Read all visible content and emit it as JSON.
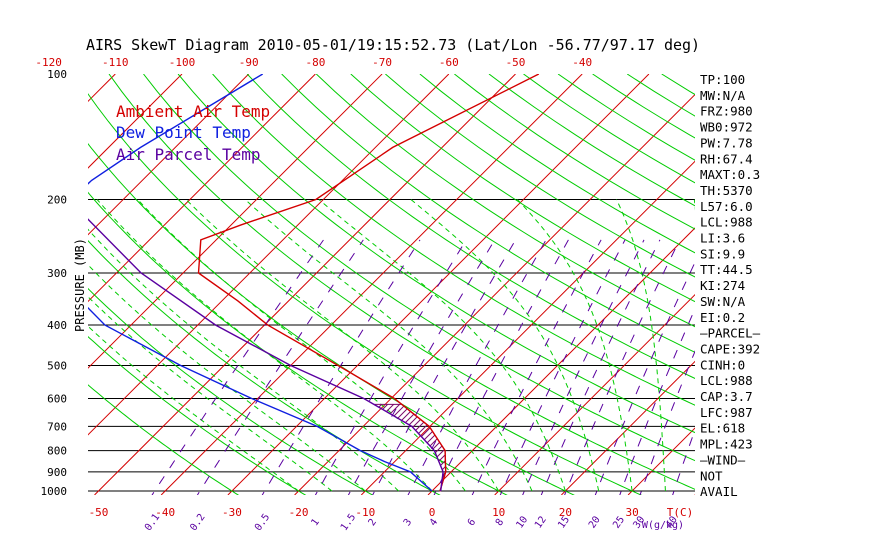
{
  "title": "AIRS SkewT Diagram 2010-05-01/19:15:52.73 (Lat/Lon -56.77/97.17 deg)",
  "ylabel": "PRESSURE (MB)",
  "xlabel": "T(C)",
  "mixing_label": "W(g/kg)",
  "top_ticks": [
    "-120",
    "-110",
    "-100",
    "-90",
    "-80",
    "-70",
    "-60",
    "-50",
    "-40"
  ],
  "bottom_ticks": [
    "-50",
    "-40",
    "-30",
    "-20",
    "-10",
    "0",
    "10",
    "20",
    "30"
  ],
  "pressure_ticks": [
    "100",
    "200",
    "300",
    "400",
    "500",
    "600",
    "700",
    "800",
    "900",
    "1000"
  ],
  "mixing_ratio_labels": [
    "0.1",
    "0.2",
    "0.5",
    "1",
    "1.5",
    "2",
    "3",
    "4",
    "6",
    "8",
    "10",
    "12",
    "15",
    "20",
    "25",
    "30",
    "40"
  ],
  "legend": [
    {
      "label": "Ambient Air Temp",
      "color": "#d40000"
    },
    {
      "label": "Dew Point Temp",
      "color": "#1020e0"
    },
    {
      "label": "Air Parcel Temp",
      "color": "#5a00a0"
    }
  ],
  "stats": [
    "TP:100",
    "MW:N/A",
    "FRZ:980",
    "WB0:972",
    "PW:7.78",
    "RH:67.4",
    "MAXT:0.3",
    "TH:5370",
    "L57:6.0",
    "LCL:988",
    "LI:3.6",
    "SI:9.9",
    "TT:44.5",
    "KI:274",
    "SW:N/A",
    "EI:0.2",
    "—PARCEL—",
    "CAPE:392",
    "CINH:0",
    "LCL:988",
    "CAP:3.7",
    "LFC:987",
    "EL:618",
    "MPL:423",
    "—WIND—",
    "NOT",
    "AVAIL"
  ],
  "colors": {
    "temperature": "#d40000",
    "dewpoint": "#1020e0",
    "parcel": "#5a00a0",
    "dry_adiabat": "#00cc00",
    "isotherm": "#d40000",
    "mixing_ratio": "#5a00a0",
    "background": "#ffffff"
  },
  "chart_data": {
    "type": "line",
    "title": "AIRS SkewT Diagram 2010-05-01/19:15:52.73 (Lat/Lon -56.77/97.17 deg)",
    "ylabel": "PRESSURE (MB)",
    "xlabel": "T(C)",
    "y_scale": "log",
    "ylim": [
      1050,
      100
    ],
    "xlim_bottom": [
      -52,
      38
    ],
    "series": [
      {
        "name": "Ambient Air Temp",
        "color": "#d40000",
        "points": [
          [
            100,
            -46.5
          ],
          [
            150,
            -57.4
          ],
          [
            200,
            -61.1
          ],
          [
            230,
            -68.5
          ],
          [
            250,
            -72.3
          ],
          [
            300,
            -67.7
          ],
          [
            350,
            -57.6
          ],
          [
            400,
            -49.5
          ],
          [
            500,
            -32.9
          ],
          [
            600,
            -19.5
          ],
          [
            700,
            -10.1
          ],
          [
            800,
            -4.1
          ],
          [
            900,
            -0.8
          ],
          [
            1000,
            1.2
          ]
        ]
      },
      {
        "name": "Dew Point Temp",
        "color": "#1020e0",
        "points": [
          [
            100,
            -87.9
          ],
          [
            150,
            -95.2
          ],
          [
            180,
            -97.6
          ],
          [
            200,
            -97.8
          ],
          [
            250,
            -96.5
          ],
          [
            300,
            -89.4
          ],
          [
            400,
            -73.9
          ],
          [
            500,
            -56.5
          ],
          [
            600,
            -40.9
          ],
          [
            700,
            -26.9
          ],
          [
            800,
            -16.8
          ],
          [
            850,
            -11.5
          ],
          [
            900,
            -6.1
          ],
          [
            1000,
            0.0
          ]
        ]
      },
      {
        "name": "Air Parcel Temp",
        "color": "#5a00a0",
        "points": [
          [
            100,
            -122.0
          ],
          [
            150,
            -110.9
          ],
          [
            200,
            -98.2
          ],
          [
            300,
            -76.3
          ],
          [
            400,
            -57.3
          ],
          [
            500,
            -40.0
          ],
          [
            600,
            -24.1
          ],
          [
            700,
            -12.7
          ],
          [
            800,
            -5.7
          ],
          [
            900,
            -1.2
          ],
          [
            1000,
            1.3
          ]
        ]
      }
    ]
  }
}
